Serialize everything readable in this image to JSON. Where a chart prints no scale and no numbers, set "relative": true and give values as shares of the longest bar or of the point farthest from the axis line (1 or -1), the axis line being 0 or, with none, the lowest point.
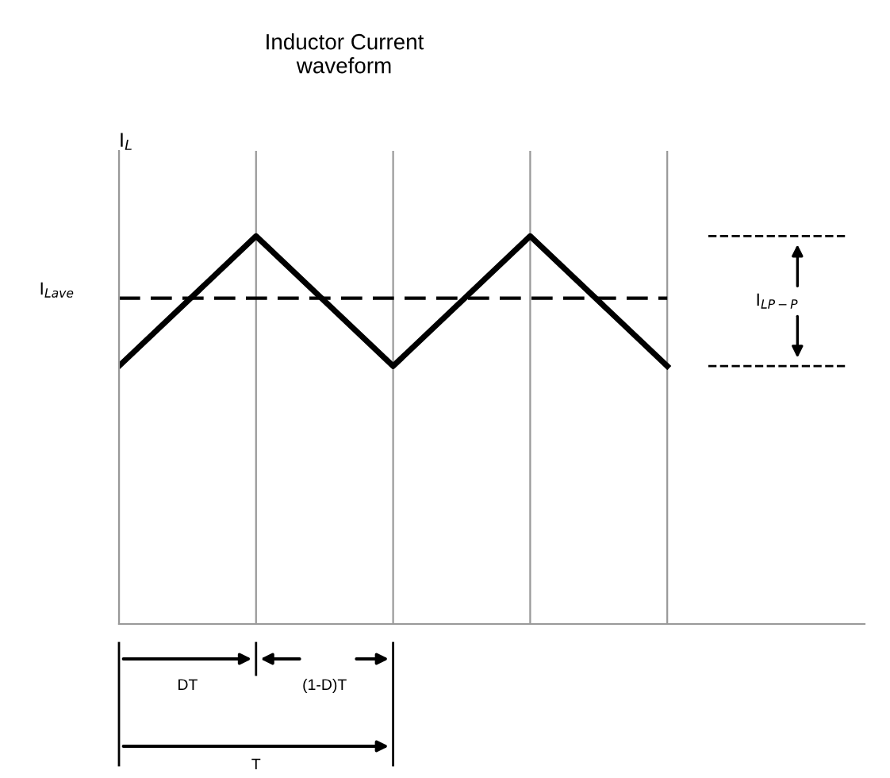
{
  "chart_data": {
    "type": "line",
    "title": "Inductor Current\nwaveform",
    "ylabel": "I$_{L}$",
    "relative": true,
    "categories": [
      null,
      null,
      null,
      null,
      null
    ],
    "series": [
      {
        "color": "#000000",
        "values": [
          0.665,
          1,
          0.665,
          1,
          0.665
        ]
      }
    ],
    "ref_lines": [
      {
        "axis": "y",
        "value": 0.84,
        "label": "I$_{Lave}$",
        "line_style": "dashed",
        "color": "#000000"
      }
    ],
    "annotations": [
      "I$_{LP−P}$",
      "DT",
      "(1-D)T",
      "T"
    ],
    "grid": "x",
    "legend": false,
    "marker": "none",
    "line_style": "solid"
  }
}
